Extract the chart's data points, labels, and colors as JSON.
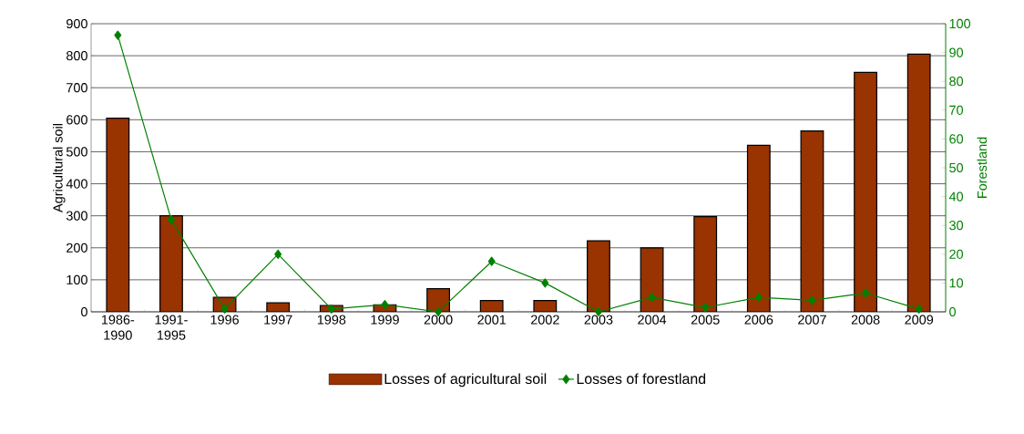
{
  "chart_data": {
    "type": "bar",
    "ylabel": "Agricultural soil",
    "y2label": "Forestland",
    "categories": [
      "1986-1990",
      "1991-1995",
      "1996",
      "1997",
      "1998",
      "1999",
      "2000",
      "2001",
      "2002",
      "2003",
      "2004",
      "2005",
      "2006",
      "2007",
      "2008",
      "2009"
    ],
    "series": [
      {
        "name": "Losses of agricultural soil",
        "color": "#993300",
        "values": [
          605,
          300,
          45,
          28,
          20,
          22,
          72,
          35,
          35,
          222,
          200,
          297,
          520,
          565,
          748,
          805
        ]
      },
      {
        "name": "Losses of forestland",
        "type": "line",
        "axis": "y2",
        "color": "#008000",
        "marker": "diamond",
        "values": [
          96,
          32,
          1,
          20,
          1,
          2.5,
          0,
          17.5,
          10,
          0,
          5,
          1.5,
          5,
          4,
          6.5,
          1
        ]
      }
    ],
    "ylim": [
      0,
      900
    ],
    "yticks": [
      0,
      100,
      200,
      300,
      400,
      500,
      600,
      700,
      800,
      900
    ],
    "y2lim": [
      0,
      100
    ],
    "y2ticks": [
      0,
      10,
      20,
      30,
      40,
      50,
      60,
      70,
      80,
      90,
      100
    ],
    "grid": "y",
    "legend": "bottom"
  }
}
